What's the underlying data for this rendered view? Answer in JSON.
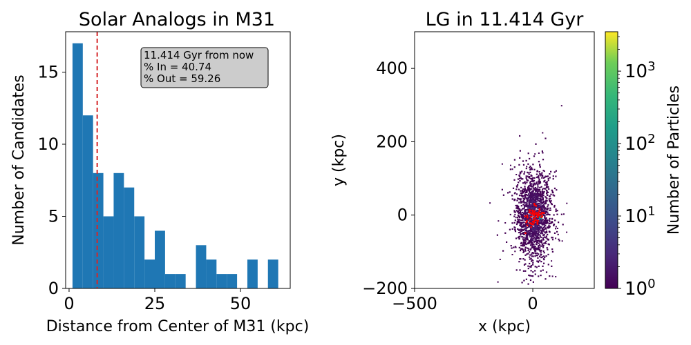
{
  "chart_data": [
    {
      "type": "bar",
      "title": "Solar Analogs in M31",
      "xlabel": "Distance from Center of M31 (kpc)",
      "ylabel": "Number of Candidates",
      "xlim": [
        -1,
        64.5
      ],
      "ylim": [
        0,
        17.8
      ],
      "xticks": [
        0,
        25,
        50
      ],
      "yticks": [
        0,
        5,
        10,
        15
      ],
      "bin_width": 3.0,
      "bins": [
        {
          "x0": 1.0,
          "count": 17
        },
        {
          "x0": 4.0,
          "count": 12
        },
        {
          "x0": 7.0,
          "count": 8
        },
        {
          "x0": 10.0,
          "count": 5
        },
        {
          "x0": 13.0,
          "count": 8
        },
        {
          "x0": 16.0,
          "count": 7
        },
        {
          "x0": 19.0,
          "count": 5
        },
        {
          "x0": 22.0,
          "count": 2
        },
        {
          "x0": 25.0,
          "count": 4
        },
        {
          "x0": 28.0,
          "count": 1
        },
        {
          "x0": 31.0,
          "count": 1
        },
        {
          "x0": 34.0,
          "count": 0
        },
        {
          "x0": 37.0,
          "count": 3
        },
        {
          "x0": 40.0,
          "count": 2
        },
        {
          "x0": 43.0,
          "count": 1
        },
        {
          "x0": 46.0,
          "count": 1
        },
        {
          "x0": 49.0,
          "count": 0
        },
        {
          "x0": 52.0,
          "count": 2
        },
        {
          "x0": 55.0,
          "count": 0
        },
        {
          "x0": 58.0,
          "count": 2
        }
      ],
      "bar_color": "#1f77b4",
      "reference_line": {
        "x": 8.2,
        "color": "#d62728",
        "style": "dashed"
      },
      "annotation": [
        "11.414 Gyr from now",
        "% In = 40.74",
        "% Out = 59.26"
      ]
    },
    {
      "type": "heatmap",
      "title": "LG in 11.414 Gyr",
      "xlabel": "x (kpc)",
      "ylabel": "y (kpc)",
      "xlim": [
        -500,
        260
      ],
      "ylim": [
        -200,
        500
      ],
      "xticks": [
        -500,
        0
      ],
      "yticks": [
        -200,
        0,
        200,
        400
      ],
      "colorbar": {
        "label": "Number of Particles",
        "scale": "log",
        "range": [
          1,
          3500
        ],
        "ticks": [
          1,
          10,
          100,
          1000
        ],
        "tick_labels": [
          {
            "base": "10",
            "exp": "0"
          },
          {
            "base": "10",
            "exp": "1"
          },
          {
            "base": "10",
            "exp": "2"
          },
          {
            "base": "10",
            "exp": "3"
          }
        ],
        "colormap": "viridis"
      },
      "cloud": {
        "center": [
          0,
          0
        ],
        "extent_x": [
          -230,
          160
        ],
        "extent_y": [
          -200,
          310
        ]
      },
      "highlight": {
        "color": "#ff0000",
        "center": [
          0,
          0
        ]
      }
    }
  ]
}
